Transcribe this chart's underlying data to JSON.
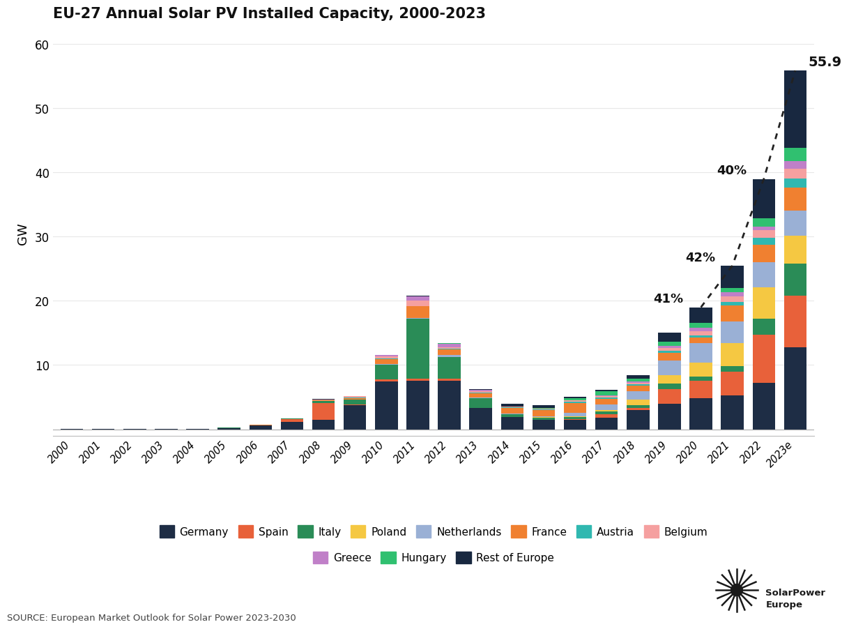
{
  "title": "EU-27 Annual Solar PV Installed Capacity, 2000-2023",
  "ylabel": "GW",
  "source": "SOURCE: European Market Outlook for Solar Power 2023-2030",
  "years": [
    "2000",
    "2001",
    "2002",
    "2003",
    "2004",
    "2005",
    "2006",
    "2007",
    "2008",
    "2009",
    "2010",
    "2011",
    "2012",
    "2013",
    "2014",
    "2015",
    "2016",
    "2017",
    "2018",
    "2019",
    "2020",
    "2021",
    "2022",
    "2023e"
  ],
  "countries": [
    "Germany",
    "Spain",
    "Italy",
    "Poland",
    "Netherlands",
    "France",
    "Austria",
    "Belgium",
    "Greece",
    "Hungary",
    "Rest of Europe"
  ],
  "colors": {
    "Germany": "#1e2d45",
    "Spain": "#e8613a",
    "Italy": "#2a8c57",
    "Poland": "#f5c842",
    "Netherlands": "#9ab0d5",
    "France": "#f08030",
    "Austria": "#30b8b0",
    "Belgium": "#f5a0a0",
    "Greece": "#c080c8",
    "Hungary": "#30c070",
    "Rest of Europe": "#182840"
  },
  "data": {
    "Germany": [
      0.01,
      0.06,
      0.06,
      0.04,
      0.06,
      0.2,
      0.6,
      1.1,
      1.5,
      3.8,
      7.4,
      7.5,
      7.6,
      3.3,
      1.9,
      1.46,
      1.52,
      1.75,
      2.96,
      3.98,
      4.85,
      5.25,
      7.2,
      12.8
    ],
    "Spain": [
      0.0,
      0.0,
      0.0,
      0.0,
      0.0,
      0.02,
      0.04,
      0.5,
      2.6,
      0.07,
      0.37,
      0.4,
      0.3,
      0.07,
      0.03,
      0.04,
      0.05,
      0.6,
      0.34,
      2.29,
      2.65,
      3.7,
      7.5,
      8.0
    ],
    "Italy": [
      0.0,
      0.0,
      0.0,
      0.0,
      0.01,
      0.01,
      0.01,
      0.04,
      0.34,
      0.73,
      2.32,
      9.3,
      3.4,
      1.44,
      0.38,
      0.3,
      0.37,
      0.41,
      0.42,
      0.88,
      0.73,
      0.9,
      2.5,
      5.0
    ],
    "Poland": [
      0.0,
      0.0,
      0.0,
      0.0,
      0.0,
      0.0,
      0.0,
      0.0,
      0.0,
      0.0,
      0.0,
      0.0,
      0.0,
      0.0,
      0.0,
      0.05,
      0.1,
      0.25,
      0.9,
      1.3,
      2.2,
      3.6,
      4.9,
      4.3
    ],
    "Netherlands": [
      0.0,
      0.0,
      0.0,
      0.0,
      0.0,
      0.0,
      0.0,
      0.0,
      0.01,
      0.07,
      0.1,
      0.15,
      0.25,
      0.16,
      0.1,
      0.2,
      0.5,
      0.9,
      1.3,
      2.3,
      3.0,
      3.3,
      3.9,
      4.0
    ],
    "France": [
      0.0,
      0.0,
      0.0,
      0.0,
      0.0,
      0.01,
      0.01,
      0.01,
      0.08,
      0.2,
      0.72,
      1.79,
      0.91,
      0.62,
      0.91,
      0.9,
      1.54,
      0.87,
      0.87,
      1.1,
      0.9,
      2.5,
      2.7,
      3.5
    ],
    "Austria": [
      0.0,
      0.0,
      0.0,
      0.0,
      0.0,
      0.0,
      0.01,
      0.01,
      0.01,
      0.03,
      0.07,
      0.07,
      0.06,
      0.07,
      0.1,
      0.12,
      0.2,
      0.19,
      0.24,
      0.4,
      0.27,
      0.6,
      1.1,
      1.5
    ],
    "Belgium": [
      0.0,
      0.0,
      0.0,
      0.0,
      0.0,
      0.01,
      0.01,
      0.01,
      0.06,
      0.21,
      0.39,
      0.89,
      0.29,
      0.22,
      0.1,
      0.15,
      0.2,
      0.17,
      0.21,
      0.45,
      0.7,
      0.9,
      1.2,
      1.5
    ],
    "Greece": [
      0.0,
      0.0,
      0.0,
      0.0,
      0.0,
      0.0,
      0.0,
      0.01,
      0.01,
      0.03,
      0.18,
      0.61,
      0.55,
      0.21,
      0.01,
      0.01,
      0.02,
      0.08,
      0.19,
      0.25,
      0.5,
      0.55,
      0.6,
      1.2
    ],
    "Hungary": [
      0.0,
      0.0,
      0.0,
      0.0,
      0.0,
      0.0,
      0.0,
      0.0,
      0.0,
      0.0,
      0.01,
      0.01,
      0.01,
      0.01,
      0.02,
      0.07,
      0.3,
      0.7,
      0.49,
      0.71,
      0.72,
      0.75,
      1.3,
      2.0
    ],
    "Rest of Europe": [
      0.0,
      0.0,
      0.0,
      0.0,
      0.0,
      0.0,
      0.01,
      0.04,
      0.08,
      0.05,
      0.06,
      0.07,
      0.08,
      0.19,
      0.45,
      0.47,
      0.26,
      0.27,
      0.53,
      1.39,
      2.48,
      3.45,
      6.1,
      12.1
    ]
  },
  "ylim": [
    -1.0,
    62
  ],
  "total_label": "55.9",
  "background_color": "#ffffff",
  "logo_text": "SolarPower\nEurope"
}
